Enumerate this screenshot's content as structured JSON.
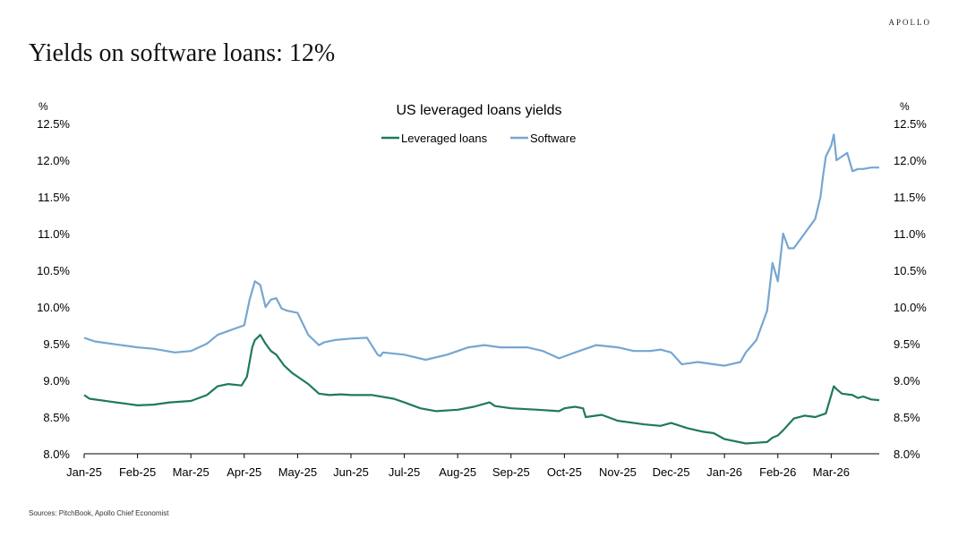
{
  "brand": "APOLLO",
  "headline": "Yields on software loans: 12%",
  "source": "Sources: PitchBook, Apollo Chief Economist",
  "colors": {
    "leveraged": "#1f7a5a",
    "software": "#76a6d2",
    "axis": "#000000"
  },
  "chart_data": {
    "type": "line",
    "title": "US leveraged loans yields",
    "ylabel_left": "%",
    "ylabel_right": "%",
    "ylim": [
      8.0,
      12.5
    ],
    "ytick_values": [
      8.0,
      8.5,
      9.0,
      9.5,
      10.0,
      10.5,
      11.0,
      11.5,
      12.0,
      12.5
    ],
    "ytick_labels": [
      "8.0%",
      "8.5%",
      "9.0%",
      "9.5%",
      "10.0%",
      "10.5%",
      "11.0%",
      "11.5%",
      "12.0%",
      "12.5%"
    ],
    "x_unit": "months since Jan-2025",
    "xlim": [
      0,
      14.9
    ],
    "xtick_values": [
      0,
      1,
      2,
      3,
      4,
      5,
      6,
      7,
      8,
      9,
      10,
      11,
      12,
      13,
      14
    ],
    "xtick_labels": [
      "Jan-25",
      "Feb-25",
      "Mar-25",
      "Apr-25",
      "May-25",
      "Jun-25",
      "Jul-25",
      "Aug-25",
      "Sep-25",
      "Oct-25",
      "Nov-25",
      "Dec-25",
      "Jan-26",
      "Feb-26",
      "Mar-26"
    ],
    "legend": [
      "Leveraged loans",
      "Software"
    ],
    "series": [
      {
        "name": "Leveraged loans",
        "x": [
          0,
          0.1,
          0.3,
          0.5,
          0.8,
          1.0,
          1.3,
          1.6,
          2.0,
          2.3,
          2.5,
          2.7,
          2.95,
          3.05,
          3.15,
          3.2,
          3.3,
          3.4,
          3.5,
          3.6,
          3.75,
          3.9,
          4.0,
          4.2,
          4.4,
          4.6,
          4.8,
          5.0,
          5.4,
          5.8,
          6.0,
          6.3,
          6.6,
          7.0,
          7.3,
          7.5,
          7.6,
          7.7,
          8.0,
          8.5,
          8.9,
          9.0,
          9.2,
          9.35,
          9.4,
          9.7,
          10.0,
          10.5,
          10.8,
          11.0,
          11.3,
          11.6,
          11.8,
          12.0,
          12.4,
          12.6,
          12.8,
          12.9,
          13.0,
          13.1,
          13.3,
          13.5,
          13.7,
          13.9,
          14.0,
          14.05,
          14.1,
          14.2,
          14.4,
          14.5,
          14.6,
          14.75,
          14.9
        ],
        "values": [
          8.8,
          8.75,
          8.73,
          8.71,
          8.68,
          8.66,
          8.67,
          8.7,
          8.72,
          8.8,
          8.92,
          8.95,
          8.93,
          9.05,
          9.45,
          9.55,
          9.62,
          9.5,
          9.4,
          9.35,
          9.2,
          9.1,
          9.05,
          8.95,
          8.82,
          8.8,
          8.81,
          8.8,
          8.8,
          8.75,
          8.7,
          8.62,
          8.58,
          8.6,
          8.64,
          8.68,
          8.7,
          8.65,
          8.62,
          8.6,
          8.58,
          8.62,
          8.64,
          8.62,
          8.5,
          8.53,
          8.45,
          8.4,
          8.38,
          8.42,
          8.35,
          8.3,
          8.28,
          8.2,
          8.14,
          8.15,
          8.16,
          8.22,
          8.25,
          8.32,
          8.48,
          8.52,
          8.5,
          8.55,
          8.8,
          8.92,
          8.88,
          8.82,
          8.8,
          8.76,
          8.78,
          8.74,
          8.73
        ]
      },
      {
        "name": "Software",
        "x": [
          0,
          0.2,
          0.5,
          1.0,
          1.3,
          1.7,
          2.0,
          2.3,
          2.5,
          2.8,
          3.0,
          3.1,
          3.2,
          3.3,
          3.4,
          3.5,
          3.6,
          3.7,
          3.8,
          4.0,
          4.2,
          4.4,
          4.5,
          4.7,
          5.0,
          5.3,
          5.5,
          5.55,
          5.6,
          6.0,
          6.4,
          6.8,
          7.2,
          7.5,
          7.8,
          8.0,
          8.3,
          8.6,
          8.9,
          9.2,
          9.6,
          10.0,
          10.3,
          10.6,
          10.8,
          11.0,
          11.2,
          11.5,
          11.8,
          12.0,
          12.3,
          12.4,
          12.6,
          12.8,
          12.9,
          13.0,
          13.1,
          13.2,
          13.3,
          13.4,
          13.5,
          13.6,
          13.7,
          13.8,
          13.85,
          13.9,
          14.0,
          14.05,
          14.1,
          14.2,
          14.3,
          14.4,
          14.5,
          14.6,
          14.75,
          14.9
        ],
        "values": [
          9.58,
          9.53,
          9.5,
          9.45,
          9.43,
          9.38,
          9.4,
          9.5,
          9.62,
          9.7,
          9.75,
          10.1,
          10.35,
          10.3,
          10.0,
          10.1,
          10.12,
          9.98,
          9.95,
          9.92,
          9.62,
          9.48,
          9.52,
          9.55,
          9.57,
          9.58,
          9.35,
          9.33,
          9.38,
          9.35,
          9.28,
          9.35,
          9.45,
          9.48,
          9.45,
          9.45,
          9.45,
          9.4,
          9.3,
          9.38,
          9.48,
          9.45,
          9.4,
          9.4,
          9.42,
          9.38,
          9.22,
          9.25,
          9.22,
          9.2,
          9.25,
          9.38,
          9.55,
          9.95,
          10.6,
          10.35,
          11.0,
          10.8,
          10.8,
          10.9,
          11.0,
          11.1,
          11.2,
          11.5,
          11.8,
          12.05,
          12.2,
          12.35,
          12.0,
          12.05,
          12.1,
          11.85,
          11.88,
          11.88,
          11.9,
          11.9
        ]
      }
    ]
  }
}
